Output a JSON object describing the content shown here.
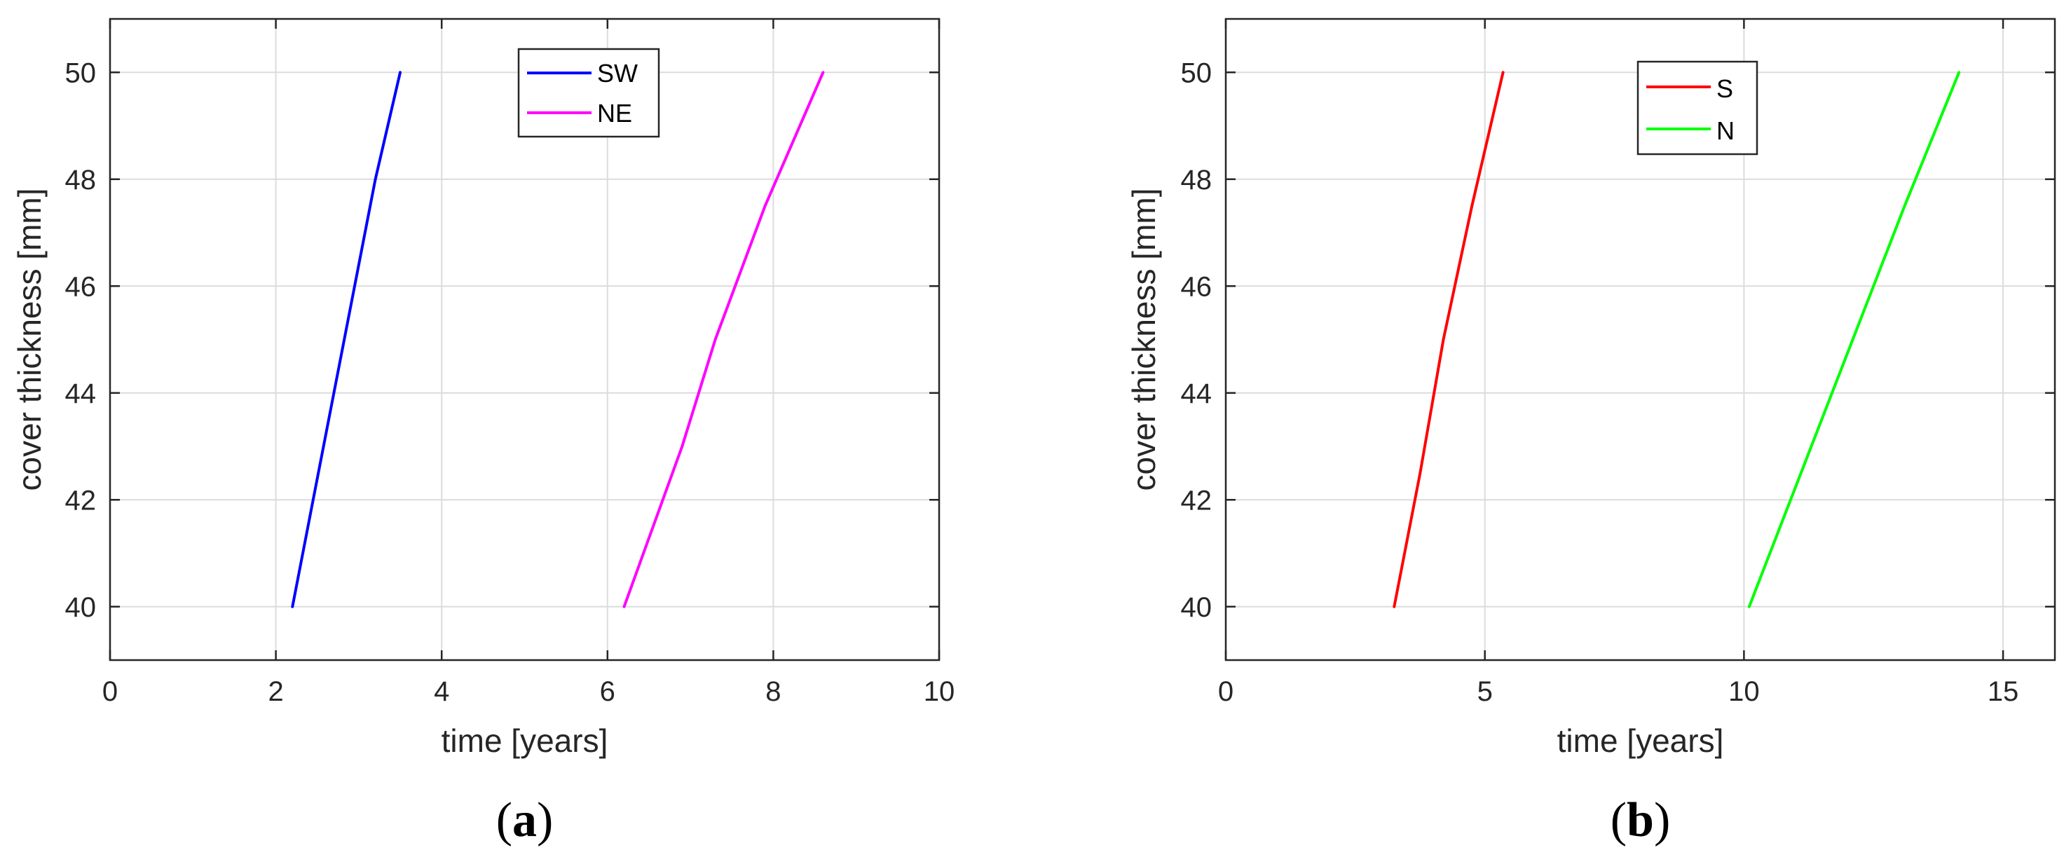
{
  "chart_data": [
    {
      "type": "line",
      "panel_label": "(a)",
      "panel_label_parts": {
        "open": "(",
        "letter": "a",
        "close": ")"
      },
      "xlabel": "time [years]",
      "ylabel": "cover thickness [mm]",
      "xlim": [
        0,
        10
      ],
      "ylim": [
        39,
        51
      ],
      "xticks": [
        0,
        2,
        4,
        6,
        8,
        10
      ],
      "yticks": [
        40,
        42,
        44,
        46,
        48,
        50
      ],
      "grid": true,
      "legend_position": "top-center",
      "series": [
        {
          "name": "SW",
          "color": "#0000ff",
          "x": [
            2.2,
            2.45,
            2.7,
            2.95,
            3.2,
            3.5
          ],
          "y": [
            40,
            42,
            44,
            46,
            48,
            50
          ]
        },
        {
          "name": "NE",
          "color": "#ff00ff",
          "x": [
            6.2,
            6.55,
            6.9,
            7.3,
            7.9,
            8.6
          ],
          "y": [
            40,
            41.5,
            43,
            45,
            47.5,
            50
          ]
        }
      ]
    },
    {
      "type": "line",
      "panel_label": "(b)",
      "panel_label_parts": {
        "open": "(",
        "letter": "b",
        "close": ")"
      },
      "xlabel": "time [years]",
      "ylabel": "cover thickness [mm]",
      "xlim": [
        0,
        16
      ],
      "ylim": [
        39,
        51
      ],
      "xticks": [
        0,
        5,
        10,
        15
      ],
      "yticks": [
        40,
        42,
        44,
        46,
        48,
        50
      ],
      "grid": true,
      "legend_position": "top-center",
      "series": [
        {
          "name": "S",
          "color": "#ff0000",
          "x": [
            3.25,
            3.75,
            4.2,
            4.75,
            5.35
          ],
          "y": [
            40,
            42.5,
            45,
            47.5,
            50
          ]
        },
        {
          "name": "N",
          "color": "#00ff00",
          "x": [
            10.1,
            11.1,
            12.1,
            13.1,
            14.15
          ],
          "y": [
            40,
            42.5,
            45,
            47.5,
            50
          ]
        }
      ]
    }
  ]
}
